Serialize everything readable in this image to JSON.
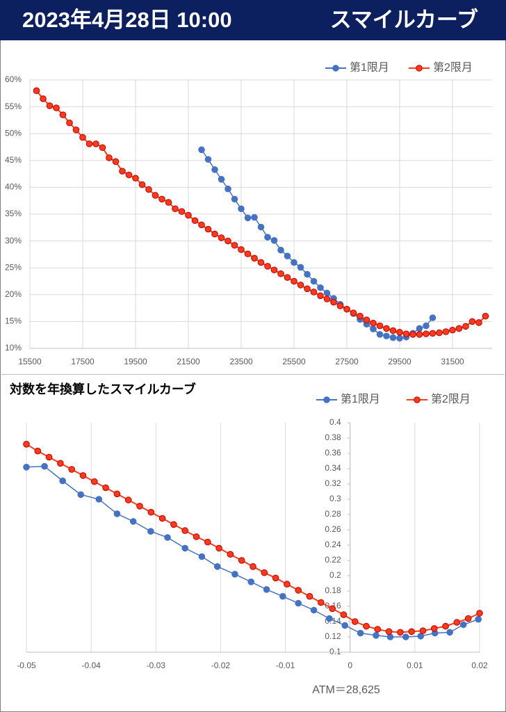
{
  "header": {
    "date": "2023年4月28日 10:00",
    "title": "スマイルカーブ"
  },
  "chart_data": [
    {
      "type": "line",
      "legend": "top-right",
      "grid": "both",
      "xlim": [
        15500,
        33000
      ],
      "xticks": [
        15500,
        17500,
        19500,
        21500,
        23500,
        25500,
        27500,
        29500,
        31500
      ],
      "ylim": [
        10,
        60
      ],
      "yticks": [
        {
          "value": 10,
          "label": "10%"
        },
        {
          "value": 15,
          "label": "15%"
        },
        {
          "value": 20,
          "label": "20%"
        },
        {
          "value": 25,
          "label": "25%"
        },
        {
          "value": 30,
          "label": "30%"
        },
        {
          "value": 35,
          "label": "35%"
        },
        {
          "value": 40,
          "label": "40%"
        },
        {
          "value": 45,
          "label": "45%"
        },
        {
          "value": 50,
          "label": "50%"
        },
        {
          "value": 55,
          "label": "55%"
        },
        {
          "value": 60,
          "label": "60%"
        }
      ],
      "series": [
        {
          "name": "第1限月",
          "color": "#4472c4",
          "x": [
            22000,
            22250,
            22500,
            22750,
            23000,
            23250,
            23500,
            23750,
            24000,
            24250,
            24500,
            24750,
            25000,
            25250,
            25500,
            25750,
            26000,
            26250,
            26500,
            26750,
            27000,
            27250,
            27500,
            27750,
            28000,
            28250,
            28500,
            28750,
            29000,
            29250,
            29500,
            29750,
            30000,
            30250,
            30500,
            30750
          ],
          "values": [
            47.0,
            45.2,
            43.3,
            41.5,
            39.7,
            37.8,
            36.0,
            34.3,
            34.4,
            32.6,
            30.7,
            30.1,
            28.3,
            27.2,
            26.0,
            25.1,
            23.8,
            22.5,
            21.3,
            20.3,
            19.3,
            18.2,
            17.3,
            16.5,
            15.4,
            14.5,
            13.6,
            12.6,
            12.3,
            12.0,
            11.9,
            12.1,
            12.8,
            13.7,
            14.2,
            15.7
          ]
        },
        {
          "name": "第2限月",
          "color": "#ff3a1a",
          "x": [
            15750,
            16000,
            16250,
            16500,
            16750,
            17000,
            17250,
            17500,
            17750,
            18000,
            18250,
            18500,
            18750,
            19000,
            19250,
            19500,
            19750,
            20000,
            20250,
            20500,
            20750,
            21000,
            21250,
            21500,
            21750,
            22000,
            22250,
            22500,
            22750,
            23000,
            23250,
            23500,
            23750,
            24000,
            24250,
            24500,
            24750,
            25000,
            25250,
            25500,
            25750,
            26000,
            26250,
            26500,
            26750,
            27000,
            27250,
            27500,
            27750,
            28000,
            28250,
            28500,
            28750,
            29000,
            29250,
            29500,
            29750,
            30000,
            30250,
            30500,
            30750,
            31000,
            31250,
            31500,
            31750,
            32000,
            32250,
            32500,
            32750
          ],
          "values": [
            58.0,
            56.5,
            55.2,
            54.8,
            53.5,
            52.0,
            50.7,
            49.3,
            48.1,
            48.1,
            47.4,
            45.5,
            44.8,
            43.0,
            42.3,
            41.7,
            40.5,
            39.6,
            38.5,
            37.8,
            37.2,
            36.0,
            35.5,
            34.8,
            33.8,
            33.0,
            32.2,
            31.3,
            30.6,
            30.0,
            29.2,
            28.4,
            27.6,
            26.8,
            26.0,
            25.3,
            24.6,
            23.9,
            23.2,
            22.5,
            21.8,
            21.1,
            20.5,
            19.8,
            19.2,
            18.6,
            17.9,
            17.3,
            16.6,
            16.0,
            15.3,
            14.7,
            14.2,
            13.7,
            13.3,
            13.0,
            12.7,
            12.6,
            12.6,
            12.7,
            12.8,
            12.9,
            13.1,
            13.4,
            13.7,
            14.1,
            15.0,
            14.8,
            16.0
          ]
        }
      ]
    },
    {
      "type": "line",
      "title": "対数を年換算したスマイルカーブ",
      "legend": "top-right",
      "grid": "x",
      "annotation": "ATM＝28,625",
      "xlim": [
        -0.05,
        0.02
      ],
      "xticks": [
        -0.05,
        -0.04,
        -0.03,
        -0.02,
        -0.01,
        0,
        0.01,
        0.02
      ],
      "ylim": [
        0.1,
        0.4
      ],
      "yticks": [
        0.1,
        0.12,
        0.14,
        0.16,
        0.18,
        0.2,
        0.22,
        0.24,
        0.26,
        0.28,
        0.3,
        0.32,
        0.34,
        0.36,
        0.38,
        0.4
      ],
      "series": [
        {
          "name": "第1限月",
          "color": "#4472c4",
          "x": [
            -0.05,
            -0.0472,
            -0.0444,
            -0.0416,
            -0.0388,
            -0.036,
            -0.0335,
            -0.0308,
            -0.0282,
            -0.0255,
            -0.0229,
            -0.0205,
            -0.0178,
            -0.0153,
            -0.0129,
            -0.0104,
            -0.008,
            -0.0056,
            -0.0032,
            -0.0008,
            0.0016,
            0.004,
            0.0062,
            0.0086,
            0.0109,
            0.0131,
            0.0154,
            0.0175,
            0.0198
          ],
          "values": [
            0.342,
            0.343,
            0.324,
            0.306,
            0.3,
            0.281,
            0.271,
            0.258,
            0.25,
            0.236,
            0.225,
            0.212,
            0.202,
            0.192,
            0.182,
            0.173,
            0.164,
            0.155,
            0.144,
            0.135,
            0.125,
            0.122,
            0.12,
            0.12,
            0.121,
            0.125,
            0.126,
            0.136,
            0.143
          ]
        },
        {
          "name": "第2限月",
          "color": "#ff3a1a",
          "x": [
            -0.05,
            -0.04825,
            -0.0465,
            -0.04475,
            -0.043,
            -0.04125,
            -0.0395,
            -0.03775,
            -0.036,
            -0.03425,
            -0.0325,
            -0.03075,
            -0.029,
            -0.02725,
            -0.0255,
            -0.02375,
            -0.022,
            -0.02025,
            -0.0185,
            -0.01675,
            -0.015,
            -0.01325,
            -0.0115,
            -0.00975,
            -0.008,
            -0.00625,
            -0.0045,
            -0.00275,
            -0.001,
            0.00075,
            0.0025,
            0.00425,
            0.006,
            0.00775,
            0.0095,
            0.01125,
            0.013,
            0.01475,
            0.0165,
            0.01825,
            0.02
          ],
          "values": [
            0.372,
            0.363,
            0.355,
            0.347,
            0.339,
            0.331,
            0.323,
            0.315,
            0.307,
            0.299,
            0.291,
            0.283,
            0.275,
            0.267,
            0.259,
            0.251,
            0.244,
            0.236,
            0.228,
            0.22,
            0.212,
            0.204,
            0.197,
            0.189,
            0.181,
            0.173,
            0.165,
            0.157,
            0.149,
            0.14,
            0.134,
            0.13,
            0.127,
            0.126,
            0.127,
            0.128,
            0.131,
            0.134,
            0.139,
            0.144,
            0.151
          ]
        }
      ]
    }
  ]
}
